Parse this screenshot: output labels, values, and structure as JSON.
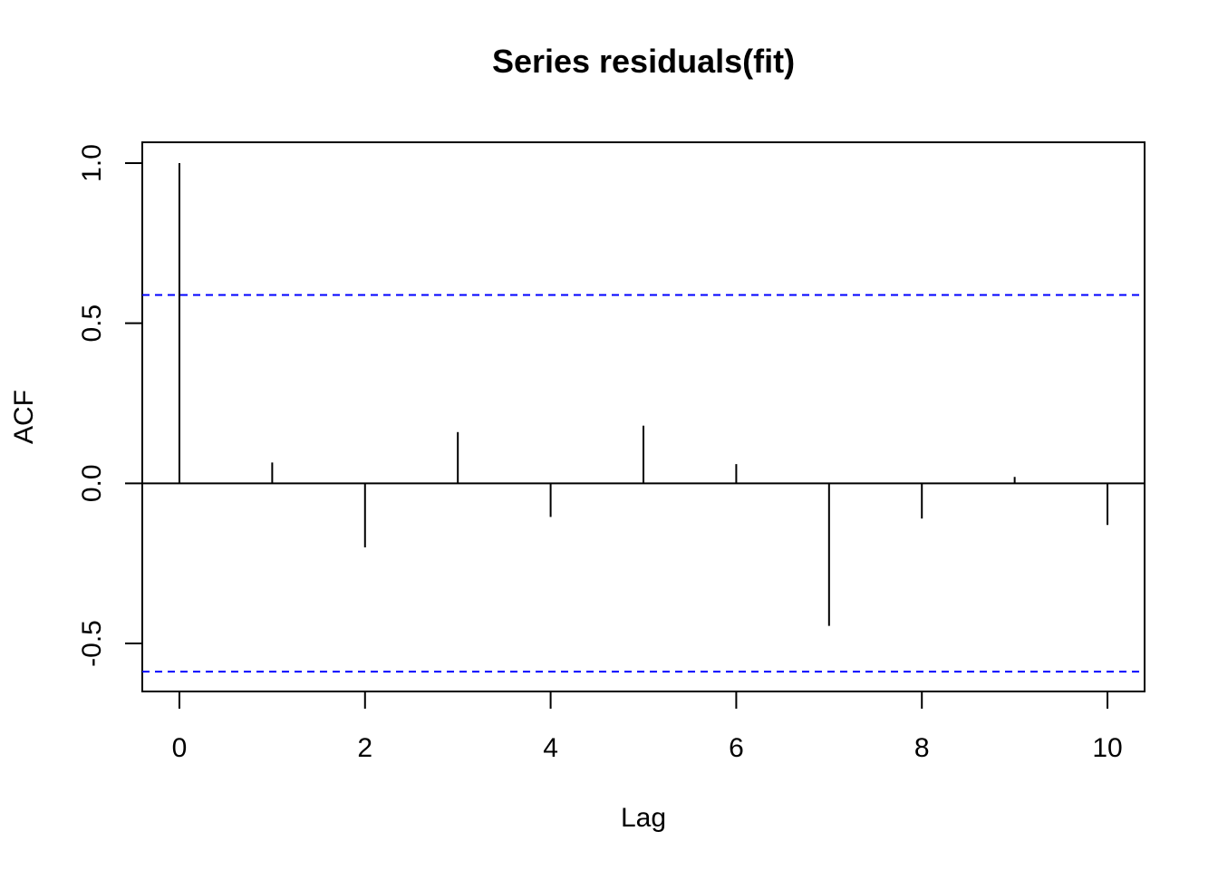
{
  "chart_data": {
    "type": "bar",
    "subtype": "acf-spike",
    "title": "Series  residuals(fit)",
    "xlabel": "Lag",
    "ylabel": "ACF",
    "x": [
      0,
      1,
      2,
      3,
      4,
      5,
      6,
      7,
      8,
      9,
      10
    ],
    "values": [
      1.0,
      0.065,
      -0.2,
      0.16,
      -0.105,
      0.18,
      0.06,
      -0.445,
      -0.11,
      0.02,
      -0.13
    ],
    "xlim": [
      -0.4,
      10.4
    ],
    "ylim": [
      -0.65,
      1.065
    ],
    "xticks": [
      0,
      2,
      4,
      6,
      8,
      10
    ],
    "xtick_labels": [
      "0",
      "2",
      "4",
      "6",
      "8",
      "10"
    ],
    "yticks": [
      -0.5,
      0.0,
      0.5,
      1.0
    ],
    "ytick_labels": [
      "-0.5",
      "0.0",
      "0.5",
      "1.0"
    ],
    "confidence_bounds": [
      0.588,
      -0.588
    ],
    "zero_line": 0,
    "grid": false,
    "colors": {
      "spike": "#000000",
      "bound": "#0000ff",
      "axis": "#000000"
    }
  }
}
